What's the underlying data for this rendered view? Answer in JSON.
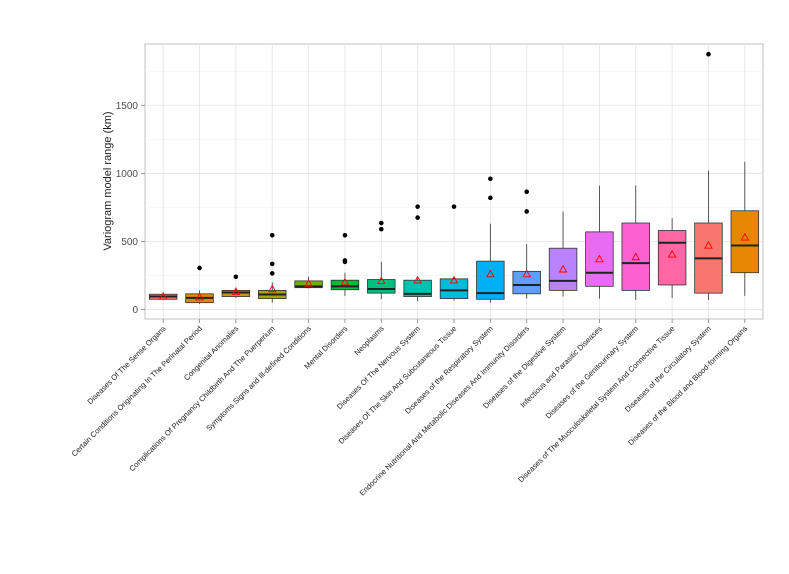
{
  "chart_data": {
    "type": "boxplot",
    "title": "",
    "xlabel": "",
    "ylabel": "Variogram model range (km)",
    "ylim": [
      -70,
      1950
    ],
    "yticks": [
      0,
      500,
      1000,
      1500
    ],
    "grid": true,
    "legend": "none",
    "mean_marker": "red open triangle",
    "categories": [
      "Diseases Of The Sense Organs",
      "Certain Conditions Originating In The Perinatal Period",
      "Congenital Anomalies",
      "Complications Of Pregnancy Childbirth And The Puerperium",
      "Symptoms Signs and Ill-defined Conditions",
      "Mental Disorders",
      "Neoplasms",
      "Diseases Of The Nervous System",
      "Diseases Of The Skin And Subcutaneous Tissue",
      "Diseases of the Respiratory System",
      "Endocrine Nutritional And Metabolic Diseases And Immunity Disorders",
      "Diseases of the Digestive System",
      "Infectious and Parasitic Diseases",
      "Diseases of the Genitourinary System",
      "Diseases of The Musculoskeletal System And Connective Tissue",
      "Diseases of the Circulatory System",
      "Diseases of the Blood and Blood-forming Organs"
    ],
    "boxes": [
      {
        "whisker_low": 70,
        "q1": 75,
        "median": 95,
        "q3": 112,
        "whisker_high": 125,
        "mean": 95,
        "outliers": [],
        "color": "#f8766d"
      },
      {
        "whisker_low": 40,
        "q1": 50,
        "median": 85,
        "q3": 115,
        "whisker_high": 140,
        "mean": 90,
        "outliers": [
          305
        ],
        "color": "#e58700"
      },
      {
        "whisker_low": 85,
        "q1": 95,
        "median": 125,
        "q3": 140,
        "whisker_high": 160,
        "mean": 130,
        "outliers": [
          240
        ],
        "color": "#c99800"
      },
      {
        "whisker_low": 50,
        "q1": 80,
        "median": 110,
        "q3": 140,
        "whisker_high": 200,
        "mean": 150,
        "outliers": [
          265,
          335,
          545
        ],
        "color": "#a3a500"
      },
      {
        "whisker_low": 155,
        "q1": 160,
        "median": 170,
        "q3": 210,
        "whisker_high": 240,
        "mean": 190,
        "outliers": [],
        "color": "#6bb100"
      },
      {
        "whisker_low": 100,
        "q1": 145,
        "median": 170,
        "q3": 215,
        "whisker_high": 270,
        "mean": 200,
        "outliers": [
          350,
          360,
          545
        ],
        "color": "#00ba38"
      },
      {
        "whisker_low": 75,
        "q1": 120,
        "median": 150,
        "q3": 220,
        "whisker_high": 350,
        "mean": 210,
        "outliers": [
          590,
          635
        ],
        "color": "#00bf7d"
      },
      {
        "whisker_low": 60,
        "q1": 95,
        "median": 115,
        "q3": 215,
        "whisker_high": 230,
        "mean": 215,
        "outliers": [
          675,
          755
        ],
        "color": "#00c0af"
      },
      {
        "whisker_low": 65,
        "q1": 80,
        "median": 140,
        "q3": 225,
        "whisker_high": 235,
        "mean": 215,
        "outliers": [
          755
        ],
        "color": "#00bcd8"
      },
      {
        "whisker_low": 50,
        "q1": 75,
        "median": 120,
        "q3": 355,
        "whisker_high": 630,
        "mean": 260,
        "outliers": [
          820,
          960
        ],
        "color": "#00b0f6"
      },
      {
        "whisker_low": 80,
        "q1": 115,
        "median": 180,
        "q3": 280,
        "whisker_high": 480,
        "mean": 260,
        "outliers": [
          720,
          865
        ],
        "color": "#619cff"
      },
      {
        "whisker_low": 95,
        "q1": 140,
        "median": 210,
        "q3": 450,
        "whisker_high": 720,
        "mean": 295,
        "outliers": [],
        "color": "#b983ff"
      },
      {
        "whisker_low": 80,
        "q1": 170,
        "median": 270,
        "q3": 570,
        "whisker_high": 910,
        "mean": 370,
        "outliers": [],
        "color": "#e76bf3"
      },
      {
        "whisker_low": 70,
        "q1": 140,
        "median": 340,
        "q3": 635,
        "whisker_high": 910,
        "mean": 385,
        "outliers": [],
        "color": "#fd61d1"
      },
      {
        "whisker_low": 85,
        "q1": 180,
        "median": 490,
        "q3": 580,
        "whisker_high": 670,
        "mean": 405,
        "outliers": [],
        "color": "#ff67a4"
      },
      {
        "whisker_low": 70,
        "q1": 120,
        "median": 375,
        "q3": 635,
        "whisker_high": 1020,
        "mean": 470,
        "outliers": [
          1875
        ],
        "color": "#f8766d"
      },
      {
        "whisker_low": 100,
        "q1": 270,
        "median": 470,
        "q3": 725,
        "whisker_high": 1085,
        "mean": 530,
        "outliers": [],
        "color": "#e58700"
      }
    ]
  }
}
